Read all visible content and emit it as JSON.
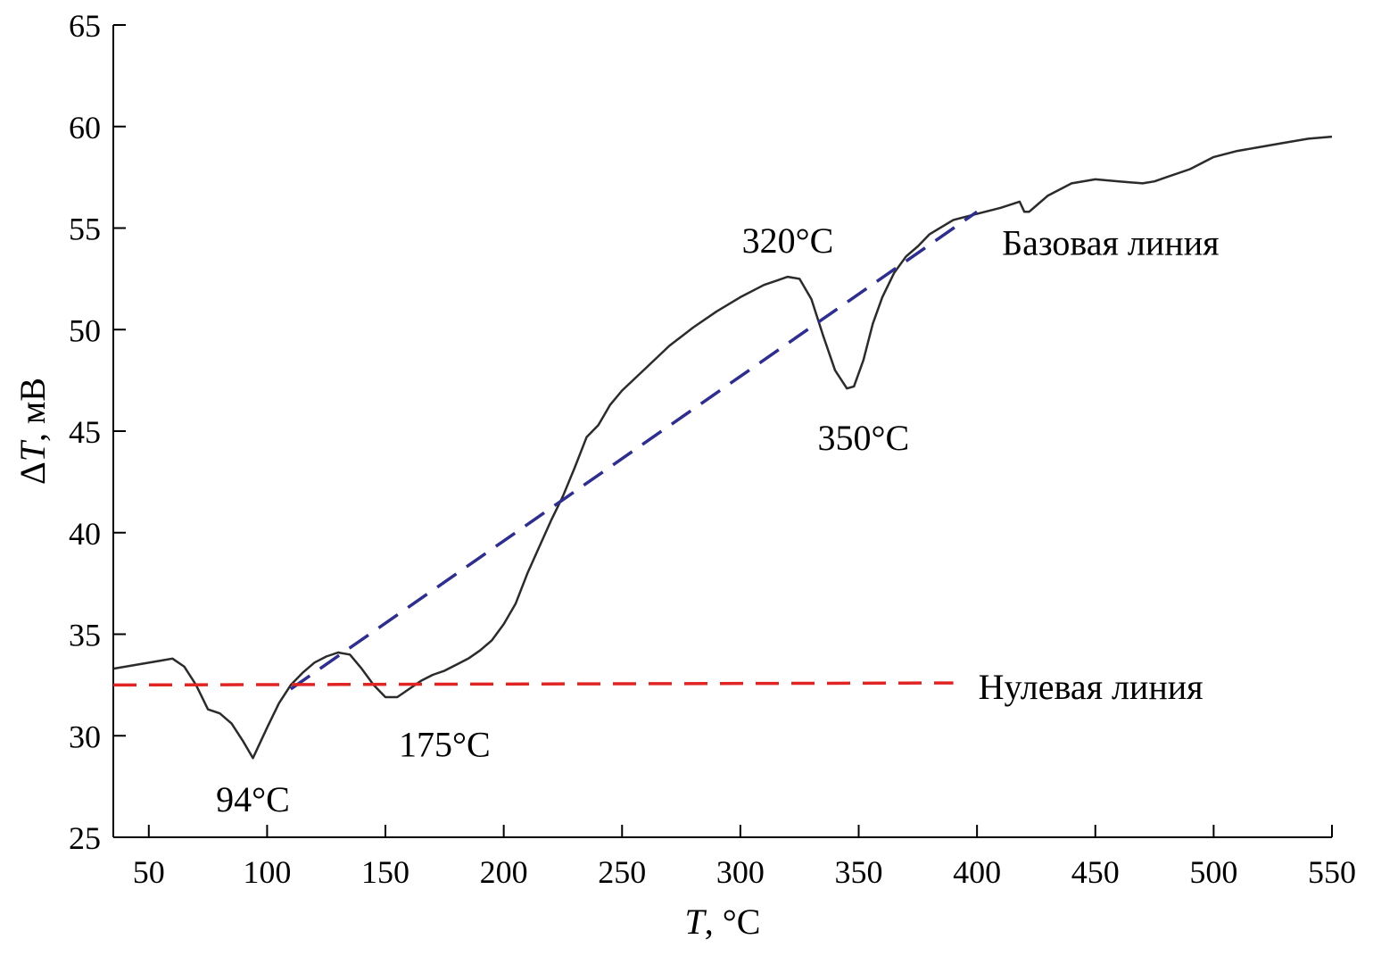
{
  "chart_data": {
    "type": "line",
    "xlabel": "T, °C",
    "xlabel_var": "T",
    "xlabel_unit": ", °C",
    "ylabel": "ΔT, мВ",
    "ylabel_delta": "Δ",
    "ylabel_var": "T",
    "ylabel_unit": ", мВ",
    "xlim": [
      35,
      550
    ],
    "ylim": [
      25,
      65
    ],
    "xticks": [
      50,
      100,
      150,
      200,
      250,
      300,
      350,
      400,
      450,
      500,
      550
    ],
    "yticks": [
      25,
      30,
      35,
      40,
      45,
      50,
      55,
      60,
      65
    ],
    "grid": false,
    "series": [
      {
        "color": "#2b2b2b",
        "style": "solid",
        "x": [
          35,
          45,
          55,
          60,
          65,
          70,
          75,
          80,
          85,
          90,
          94,
          100,
          105,
          110,
          115,
          120,
          125,
          130,
          135,
          140,
          145,
          150,
          155,
          160,
          165,
          170,
          175,
          180,
          185,
          190,
          195,
          200,
          205,
          210,
          215,
          220,
          225,
          230,
          235,
          240,
          245,
          250,
          260,
          270,
          280,
          290,
          300,
          310,
          315,
          320,
          325,
          330,
          335,
          340,
          345,
          348,
          352,
          356,
          360,
          365,
          370,
          375,
          380,
          390,
          400,
          410,
          418,
          420,
          422,
          425,
          430,
          440,
          450,
          460,
          470,
          475,
          480,
          490,
          500,
          510,
          520,
          530,
          540,
          550
        ],
        "y": [
          33.3,
          33.5,
          33.7,
          33.8,
          33.4,
          32.5,
          31.3,
          31.1,
          30.6,
          29.7,
          28.9,
          30.4,
          31.6,
          32.5,
          33.1,
          33.6,
          33.9,
          34.1,
          34.0,
          33.3,
          32.5,
          31.9,
          31.9,
          32.3,
          32.7,
          33.0,
          33.2,
          33.5,
          33.8,
          34.2,
          34.7,
          35.5,
          36.5,
          38.0,
          39.3,
          40.6,
          41.8,
          43.2,
          44.7,
          45.3,
          46.3,
          47.0,
          48.1,
          49.2,
          50.1,
          50.9,
          51.6,
          52.2,
          52.4,
          52.6,
          52.5,
          51.5,
          49.7,
          48.0,
          47.1,
          47.2,
          48.5,
          50.3,
          51.6,
          52.8,
          53.6,
          54.1,
          54.7,
          55.4,
          55.7,
          56.0,
          56.3,
          55.8,
          55.8,
          56.1,
          56.6,
          57.2,
          57.4,
          57.3,
          57.2,
          57.3,
          57.5,
          57.9,
          58.5,
          58.8,
          59.0,
          59.2,
          59.4,
          59.5
        ]
      },
      {
        "name": "Базовая линия",
        "color": "#2e2e8f",
        "style": "dashed",
        "x": [
          110,
          400
        ],
        "y": [
          32.3,
          55.8
        ]
      },
      {
        "name": "Нулевая линия",
        "color": "#e02424",
        "style": "dashed",
        "x": [
          35,
          390
        ],
        "y": [
          32.5,
          32.6
        ]
      }
    ],
    "annotations": [
      {
        "text": "94°C",
        "x": 94,
        "y": 26.9
      },
      {
        "text": "175°C",
        "x": 175,
        "y": 29.6
      },
      {
        "text": "320°C",
        "x": 320,
        "y": 54.4
      },
      {
        "text": "350°C",
        "x": 352,
        "y": 44.7
      }
    ],
    "line_labels": [
      {
        "text": "Базовая линия",
        "series": 1
      },
      {
        "text": "Нулевая линия",
        "series": 2
      }
    ]
  }
}
